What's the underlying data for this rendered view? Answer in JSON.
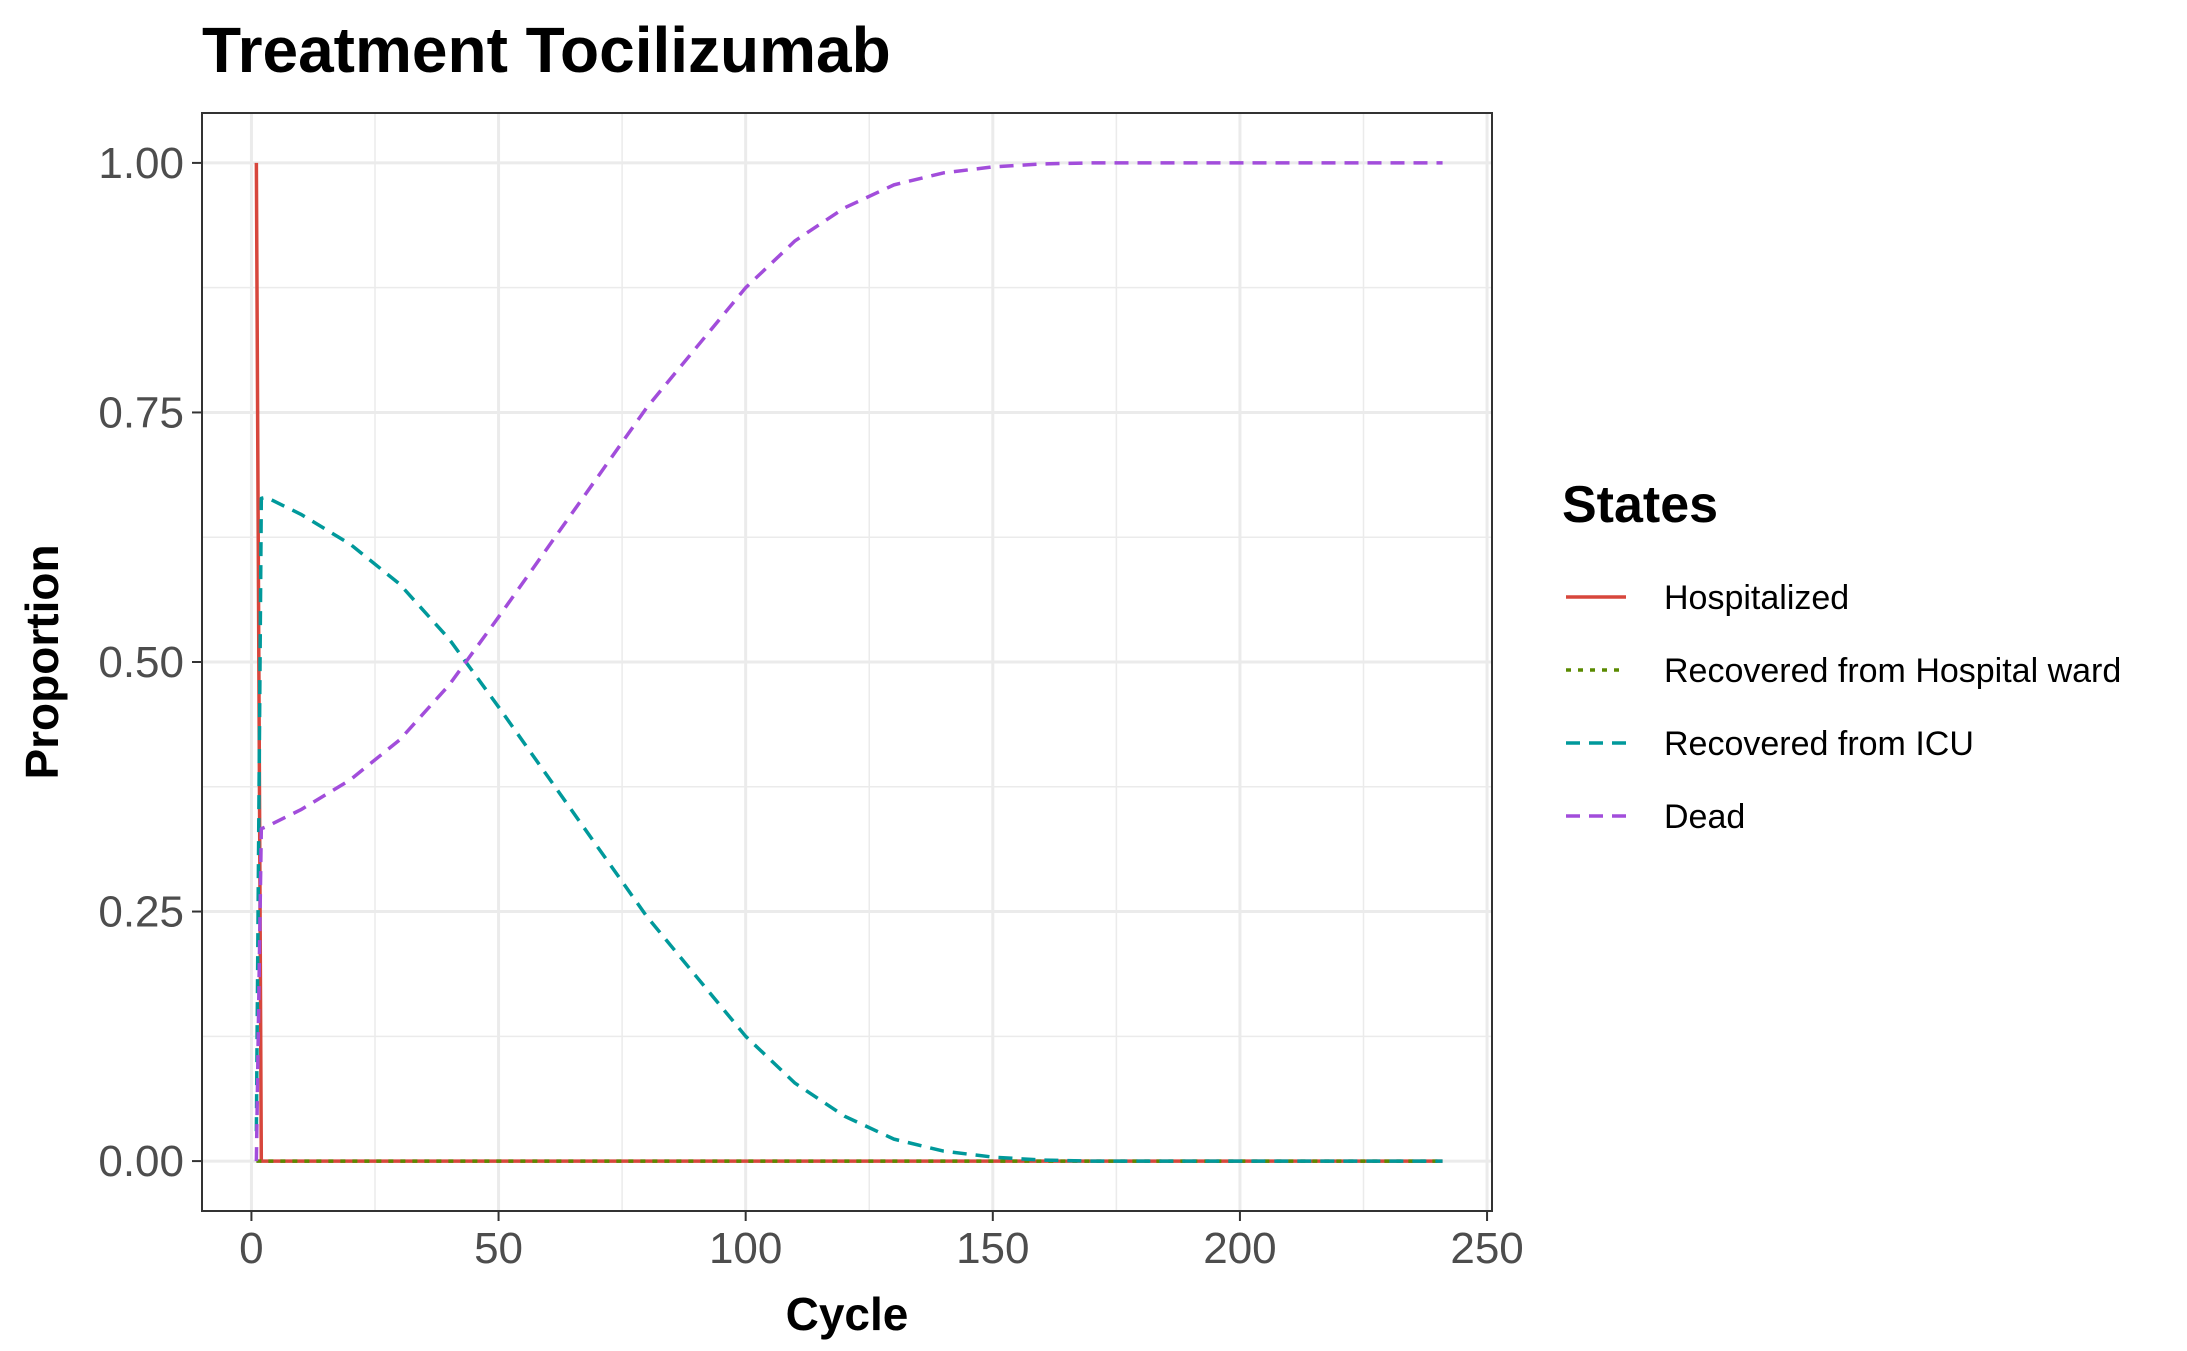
{
  "chart_data": {
    "type": "line",
    "title": "Treatment Tocilizumab",
    "xlabel": "Cycle",
    "ylabel": "Proportion",
    "xlim": [
      -10,
      251
    ],
    "ylim": [
      -0.05,
      1.05
    ],
    "x_ticks": [
      0,
      50,
      100,
      150,
      200,
      250
    ],
    "x_tick_labels": [
      "0",
      "50",
      "100",
      "150",
      "200",
      "250"
    ],
    "y_ticks": [
      0,
      0.25,
      0.5,
      0.75,
      1.0
    ],
    "y_tick_labels": [
      "0.00",
      "0.25",
      "0.50",
      "0.75",
      "1.00"
    ],
    "x_minor_ticks": [
      25,
      75,
      125,
      175,
      225
    ],
    "y_minor_ticks": [
      0.125,
      0.375,
      0.625,
      0.875
    ],
    "grid": true,
    "legend": {
      "title": "States",
      "placement": "right"
    },
    "series": [
      {
        "name": "Hospitalized",
        "color": "#d7463c",
        "dash": "solid",
        "points": [
          [
            1,
            1.0
          ],
          [
            2,
            0.0
          ],
          [
            241,
            0.0
          ]
        ]
      },
      {
        "name": "Recovered from Hospital ward",
        "color": "#5a8a00",
        "dash": "dotted",
        "points": [
          [
            1,
            0.0
          ],
          [
            2,
            0.0
          ],
          [
            241,
            0.0
          ]
        ]
      },
      {
        "name": "Recovered from ICU",
        "color": "#00999b",
        "dash": "dashed",
        "points": [
          [
            1,
            0.03
          ],
          [
            2,
            0.664
          ],
          [
            3,
            0.665
          ],
          [
            10,
            0.648
          ],
          [
            20,
            0.618
          ],
          [
            30,
            0.578
          ],
          [
            40,
            0.523
          ],
          [
            50,
            0.455
          ],
          [
            60,
            0.385
          ],
          [
            70,
            0.315
          ],
          [
            80,
            0.245
          ],
          [
            90,
            0.185
          ],
          [
            100,
            0.125
          ],
          [
            110,
            0.078
          ],
          [
            120,
            0.045
          ],
          [
            130,
            0.022
          ],
          [
            140,
            0.01
          ],
          [
            150,
            0.004
          ],
          [
            160,
            0.001
          ],
          [
            170,
            0.0
          ],
          [
            241,
            0.0
          ]
        ]
      },
      {
        "name": "Dead",
        "color": "#a24ddb",
        "dash": "dashed",
        "points": [
          [
            1,
            0.0
          ],
          [
            2,
            0.333
          ],
          [
            3,
            0.335
          ],
          [
            10,
            0.352
          ],
          [
            20,
            0.382
          ],
          [
            30,
            0.422
          ],
          [
            40,
            0.477
          ],
          [
            50,
            0.545
          ],
          [
            60,
            0.615
          ],
          [
            70,
            0.685
          ],
          [
            80,
            0.755
          ],
          [
            90,
            0.815
          ],
          [
            100,
            0.875
          ],
          [
            110,
            0.922
          ],
          [
            120,
            0.955
          ],
          [
            130,
            0.978
          ],
          [
            140,
            0.99
          ],
          [
            150,
            0.996
          ],
          [
            160,
            0.999
          ],
          [
            170,
            1.0
          ],
          [
            241,
            1.0
          ]
        ]
      }
    ]
  }
}
